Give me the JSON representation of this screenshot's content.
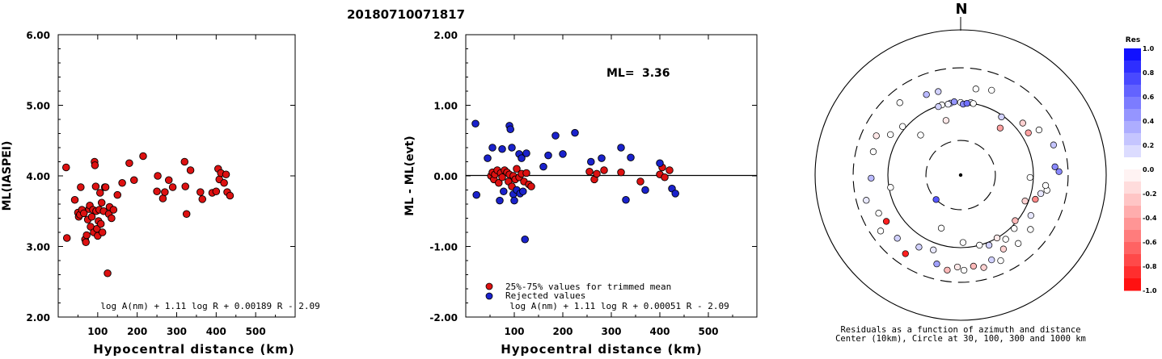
{
  "event_id": "20180710071817",
  "chart_data": [
    {
      "type": "scatter",
      "ylabel": "ML(IASPEI)",
      "xlabel": "Hypocentral distance (km)",
      "xlim": [
        0,
        600
      ],
      "ylim": [
        2.0,
        6.0
      ],
      "xticks": [
        "100",
        "200",
        "300",
        "400",
        "500"
      ],
      "yticks": [
        "2.00",
        "3.00",
        "4.00",
        "5.00",
        "6.00"
      ],
      "formula": "log A(nm) + 1.11 log R + 0.00189 R - 2.09",
      "grid": false,
      "marker_color": "#dd1111",
      "points": [
        [
          20,
          4.12
        ],
        [
          22,
          3.12
        ],
        [
          42,
          3.66
        ],
        [
          50,
          3.48
        ],
        [
          52,
          3.42
        ],
        [
          55,
          3.45
        ],
        [
          57,
          3.84
        ],
        [
          60,
          3.52
        ],
        [
          65,
          3.47
        ],
        [
          68,
          3.1
        ],
        [
          70,
          3.06
        ],
        [
          72,
          3.16
        ],
        [
          75,
          3.38
        ],
        [
          78,
          3.53
        ],
        [
          80,
          3.58
        ],
        [
          82,
          3.28
        ],
        [
          85,
          3.42
        ],
        [
          88,
          3.52
        ],
        [
          90,
          3.2
        ],
        [
          92,
          4.2
        ],
        [
          93,
          4.15
        ],
        [
          95,
          3.85
        ],
        [
          96,
          3.5
        ],
        [
          98,
          3.25
        ],
        [
          100,
          3.15
        ],
        [
          102,
          3.36
        ],
        [
          104,
          3.52
        ],
        [
          106,
          3.76
        ],
        [
          108,
          3.32
        ],
        [
          110,
          3.62
        ],
        [
          112,
          3.2
        ],
        [
          115,
          3.5
        ],
        [
          118,
          3.84
        ],
        [
          120,
          3.84
        ],
        [
          125,
          2.62
        ],
        [
          128,
          3.46
        ],
        [
          130,
          3.56
        ],
        [
          135,
          3.4
        ],
        [
          140,
          3.52
        ],
        [
          150,
          3.73
        ],
        [
          162,
          3.9
        ],
        [
          180,
          4.18
        ],
        [
          192,
          3.94
        ],
        [
          215,
          4.28
        ],
        [
          250,
          3.78
        ],
        [
          252,
          4.0
        ],
        [
          265,
          3.68
        ],
        [
          270,
          3.77
        ],
        [
          280,
          3.94
        ],
        [
          290,
          3.84
        ],
        [
          320,
          4.2
        ],
        [
          322,
          3.85
        ],
        [
          325,
          3.46
        ],
        [
          335,
          4.08
        ],
        [
          360,
          3.77
        ],
        [
          365,
          3.67
        ],
        [
          390,
          3.76
        ],
        [
          400,
          3.78
        ],
        [
          405,
          4.1
        ],
        [
          408,
          3.95
        ],
        [
          412,
          4.04
        ],
        [
          420,
          3.9
        ],
        [
          425,
          4.02
        ],
        [
          428,
          3.77
        ],
        [
          435,
          3.72
        ]
      ]
    },
    {
      "type": "scatter",
      "ylabel": "ML - ML(evt)",
      "xlabel": "Hypocentral distance (km)",
      "xlim": [
        0,
        600
      ],
      "ylim": [
        -2.0,
        2.0
      ],
      "xticks": [
        "100",
        "200",
        "300",
        "400",
        "500"
      ],
      "yticks": [
        "-2.00",
        "-1.00",
        "0.00",
        "1.00",
        "2.00"
      ],
      "ml_label": "ML=",
      "ml_value": "3.36",
      "formula": "log A(nm) + 1.11 log R + 0.00051 R - 2.09",
      "grid": false,
      "reference_line": 0.0,
      "legend_location": "bottom-left",
      "series": [
        {
          "name": "25%-75% values for trimmed mean",
          "color": "#dd1111",
          "points": [
            [
              52,
              0.0
            ],
            [
              55,
              0.05
            ],
            [
              58,
              -0.05
            ],
            [
              60,
              0.02
            ],
            [
              65,
              0.08
            ],
            [
              68,
              -0.1
            ],
            [
              72,
              0.04
            ],
            [
              75,
              -0.02
            ],
            [
              80,
              0.08
            ],
            [
              85,
              0.05
            ],
            [
              88,
              -0.08
            ],
            [
              90,
              0.02
            ],
            [
              95,
              -0.15
            ],
            [
              98,
              0.0
            ],
            [
              102,
              -0.05
            ],
            [
              105,
              0.1
            ],
            [
              110,
              -0.02
            ],
            [
              115,
              0.03
            ],
            [
              120,
              -0.08
            ],
            [
              125,
              0.04
            ],
            [
              130,
              -0.12
            ],
            [
              135,
              -0.15
            ],
            [
              255,
              0.06
            ],
            [
              265,
              -0.05
            ],
            [
              270,
              0.03
            ],
            [
              285,
              0.08
            ],
            [
              320,
              0.05
            ],
            [
              360,
              -0.08
            ],
            [
              400,
              0.02
            ],
            [
              405,
              0.12
            ],
            [
              410,
              -0.02
            ],
            [
              420,
              0.08
            ]
          ]
        },
        {
          "name": "Rejected values",
          "color": "#1a22cc",
          "points": [
            [
              20,
              0.74
            ],
            [
              22,
              -0.27
            ],
            [
              45,
              0.25
            ],
            [
              55,
              0.4
            ],
            [
              70,
              -0.35
            ],
            [
              75,
              0.38
            ],
            [
              78,
              -0.22
            ],
            [
              90,
              0.71
            ],
            [
              92,
              0.66
            ],
            [
              95,
              0.4
            ],
            [
              98,
              -0.26
            ],
            [
              100,
              -0.35
            ],
            [
              105,
              -0.2
            ],
            [
              110,
              0.31
            ],
            [
              112,
              -0.25
            ],
            [
              115,
              0.25
            ],
            [
              118,
              -0.22
            ],
            [
              122,
              -0.9
            ],
            [
              125,
              0.32
            ],
            [
              160,
              0.13
            ],
            [
              170,
              0.29
            ],
            [
              185,
              0.57
            ],
            [
              200,
              0.31
            ],
            [
              225,
              0.61
            ],
            [
              258,
              0.2
            ],
            [
              280,
              0.25
            ],
            [
              320,
              0.4
            ],
            [
              330,
              -0.34
            ],
            [
              340,
              0.26
            ],
            [
              370,
              -0.2
            ],
            [
              400,
              0.18
            ],
            [
              425,
              -0.18
            ],
            [
              432,
              -0.25
            ]
          ]
        }
      ]
    },
    {
      "type": "scatter",
      "subtype": "polar-residuals",
      "north_label": "N",
      "caption_line1": "Residuals as a function of azimuth and distance",
      "caption_line2": "Center (10km), Circle at 30, 100, 300 and 1000 km",
      "center_km": 10,
      "ring_km": [
        30,
        100,
        300,
        1000
      ],
      "ring_styles": [
        "dashed",
        "solid",
        "dashed",
        "solid"
      ],
      "colorbar_title": "Res",
      "colorbar_ticks": [
        "1.0",
        "0.8",
        "0.6",
        "0.4",
        "0.2",
        "0.0",
        "-0.2",
        "-0.4",
        "-0.6",
        "-0.8",
        "-1.0"
      ],
      "colorbar_range": [
        -1.0,
        1.0
      ],
      "positive_color": "#0000ff",
      "negative_color": "#ff0000",
      "stations": [
        {
          "az": 0,
          "dist": 100,
          "res": 0.0
        },
        {
          "az": 8,
          "dist": 102,
          "res": 0.1
        },
        {
          "az": 352,
          "dist": 100,
          "res": 0.3
        },
        {
          "az": 355,
          "dist": 103,
          "res": 0.45
        },
        {
          "az": 350,
          "dist": 98,
          "res": 0.05
        },
        {
          "az": 345,
          "dist": 100,
          "res": 0.0
        },
        {
          "az": 342,
          "dist": 98,
          "res": 0.2
        },
        {
          "az": 2,
          "dist": 95,
          "res": 0.5
        },
        {
          "az": 5,
          "dist": 98,
          "res": 0.6
        },
        {
          "az": 10,
          "dist": 100,
          "res": 0.0
        },
        {
          "az": 337,
          "dist": 160,
          "res": 0.3
        },
        {
          "az": 345,
          "dist": 155,
          "res": 0.2
        },
        {
          "az": 10,
          "dist": 160,
          "res": 0.0
        },
        {
          "az": 35,
          "dist": 95,
          "res": 0.2
        },
        {
          "az": 50,
          "dist": 130,
          "res": -0.2
        },
        {
          "az": 58,
          "dist": 125,
          "res": -0.4
        },
        {
          "az": 72,
          "dist": 220,
          "res": 0.25
        },
        {
          "az": 85,
          "dist": 200,
          "res": 0.5
        },
        {
          "az": 88,
          "dist": 225,
          "res": 0.5
        },
        {
          "az": 315,
          "dist": 60,
          "res": 0.0
        },
        {
          "az": 345,
          "dist": 60,
          "res": -0.1
        },
        {
          "az": 310,
          "dist": 110,
          "res": 0.0
        },
        {
          "az": 300,
          "dist": 130,
          "res": 0.0
        },
        {
          "az": 295,
          "dist": 190,
          "res": -0.1
        },
        {
          "az": 285,
          "dist": 175,
          "res": 0.0
        },
        {
          "az": 268,
          "dist": 170,
          "res": 0.3
        },
        {
          "az": 255,
          "dist": 220,
          "res": 0.1
        },
        {
          "az": 245,
          "dist": 175,
          "res": 0.0
        },
        {
          "az": 238,
          "dist": 160,
          "res": -0.9
        },
        {
          "az": 225,
          "dist": 170,
          "res": 0.2
        },
        {
          "az": 235,
          "dist": 220,
          "res": 0.0
        },
        {
          "az": 215,
          "dist": 210,
          "res": -0.9
        },
        {
          "az": 210,
          "dist": 140,
          "res": 0.2
        },
        {
          "az": 200,
          "dist": 125,
          "res": 0.1
        },
        {
          "az": 195,
          "dist": 185,
          "res": 0.4
        },
        {
          "az": 188,
          "dist": 210,
          "res": -0.3
        },
        {
          "az": 182,
          "dist": 185,
          "res": -0.1
        },
        {
          "az": 178,
          "dist": 205,
          "res": 0.0
        },
        {
          "az": 172,
          "dist": 185,
          "res": -0.3
        },
        {
          "az": 166,
          "dist": 205,
          "res": -0.2
        },
        {
          "az": 160,
          "dist": 175,
          "res": 0.2
        },
        {
          "az": 155,
          "dist": 200,
          "res": 0.0
        },
        {
          "az": 150,
          "dist": 150,
          "res": -0.2
        },
        {
          "az": 145,
          "dist": 120,
          "res": 0.0
        },
        {
          "az": 140,
          "dist": 170,
          "res": 0.0
        },
        {
          "az": 135,
          "dist": 110,
          "res": 0.0
        },
        {
          "az": 128,
          "dist": 165,
          "res": 0.0
        },
        {
          "az": 120,
          "dist": 130,
          "res": 0.1
        },
        {
          "az": 112,
          "dist": 90,
          "res": -0.2
        },
        {
          "az": 108,
          "dist": 120,
          "res": -0.5
        },
        {
          "az": 103,
          "dist": 135,
          "res": 0.1
        },
        {
          "az": 100,
          "dist": 160,
          "res": 0.0
        },
        {
          "az": 97,
          "dist": 150,
          "res": 0.0
        },
        {
          "az": 92,
          "dist": 90,
          "res": 0.0
        },
        {
          "az": 130,
          "dist": 95,
          "res": -0.3
        },
        {
          "az": 150,
          "dist": 100,
          "res": -0.1
        },
        {
          "az": 158,
          "dist": 110,
          "res": 0.2
        },
        {
          "az": 165,
          "dist": 100,
          "res": 0.0
        },
        {
          "az": 178,
          "dist": 85,
          "res": 0.0
        },
        {
          "az": 200,
          "dist": 60,
          "res": 0.0
        },
        {
          "az": 225,
          "dist": 30,
          "res": 0.7
        },
        {
          "az": 40,
          "dist": 70,
          "res": -0.4
        },
        {
          "az": 20,
          "dist": 175,
          "res": 0.0
        },
        {
          "az": 60,
          "dist": 175,
          "res": 0.0
        },
        {
          "az": 320,
          "dist": 200,
          "res": 0.0
        },
        {
          "az": 260,
          "dist": 95,
          "res": 0.0
        }
      ]
    }
  ]
}
